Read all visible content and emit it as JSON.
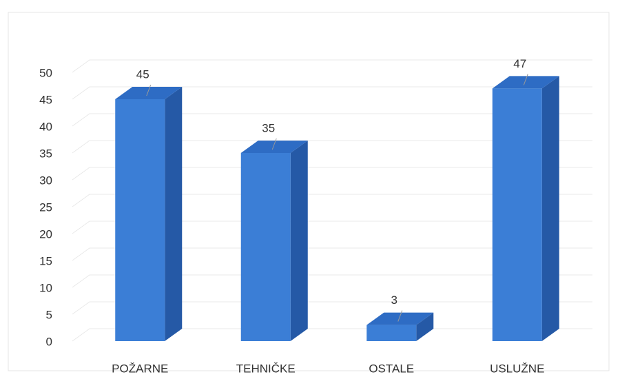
{
  "chart_data": {
    "type": "bar3d",
    "categories": [
      "POŽARNE",
      "TEHNIČKE",
      "OSTALE",
      "USLUŽNE"
    ],
    "values": [
      45,
      35,
      3,
      47
    ],
    "color": "#3b7ed6",
    "ylim": [
      0,
      50
    ],
    "yticks": [
      0,
      5,
      10,
      15,
      20,
      25,
      30,
      35,
      40,
      45,
      50
    ],
    "grid": true
  }
}
